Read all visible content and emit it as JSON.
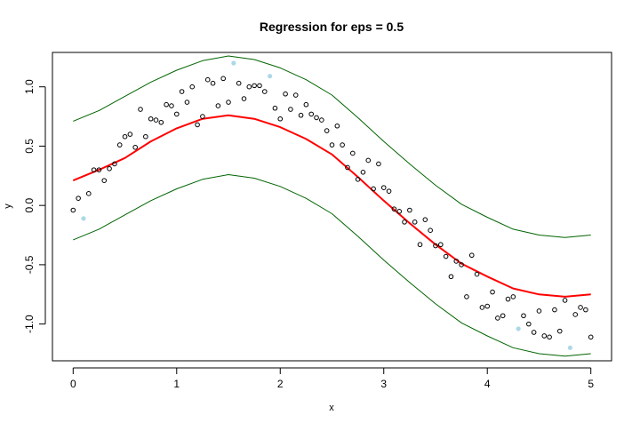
{
  "chart_data": {
    "type": "scatter",
    "title": "Regression for eps = 0.5",
    "xlabel": "x",
    "ylabel": "y",
    "xlim": [
      -0.2,
      5.2
    ],
    "ylim": [
      -1.31,
      1.29
    ],
    "xticks": [
      "0",
      "1",
      "2",
      "3",
      "4",
      "5"
    ],
    "yticks": [
      "-1.0",
      "-0.5",
      "0.0",
      "0.5",
      "1.0"
    ],
    "grid": false,
    "series": [
      {
        "type": "scatter",
        "color": "#000000",
        "marker": "open-circle",
        "x": [
          0.0,
          0.05,
          0.15,
          0.2,
          0.25,
          0.3,
          0.35,
          0.4,
          0.45,
          0.5,
          0.55,
          0.6,
          0.65,
          0.7,
          0.75,
          0.8,
          0.85,
          0.9,
          0.95,
          1.0,
          1.05,
          1.1,
          1.15,
          1.2,
          1.25,
          1.3,
          1.35,
          1.4,
          1.45,
          1.5,
          1.6,
          1.65,
          1.7,
          1.75,
          1.8,
          1.85,
          1.95,
          2.0,
          2.05,
          2.1,
          2.15,
          2.2,
          2.25,
          2.3,
          2.35,
          2.4,
          2.45,
          2.5,
          2.55,
          2.6,
          2.65,
          2.7,
          2.75,
          2.8,
          2.85,
          2.9,
          2.95,
          3.0,
          3.05,
          3.1,
          3.15,
          3.2,
          3.25,
          3.3,
          3.35,
          3.4,
          3.45,
          3.5,
          3.55,
          3.6,
          3.65,
          3.7,
          3.75,
          3.8,
          3.85,
          3.9,
          3.95,
          4.0,
          4.05,
          4.1,
          4.15,
          4.2,
          4.25,
          4.35,
          4.4,
          4.45,
          4.5,
          4.55,
          4.6,
          4.65,
          4.7,
          4.75,
          4.85,
          4.9,
          4.95,
          5.0
        ],
        "y": [
          -0.04,
          0.06,
          0.1,
          0.3,
          0.3,
          0.21,
          0.31,
          0.35,
          0.51,
          0.58,
          0.6,
          0.49,
          0.81,
          0.58,
          0.73,
          0.72,
          0.7,
          0.85,
          0.84,
          0.77,
          0.96,
          0.87,
          1.0,
          0.68,
          0.75,
          1.06,
          1.03,
          0.84,
          1.07,
          0.87,
          1.03,
          0.9,
          1.0,
          1.01,
          1.01,
          0.96,
          0.82,
          0.73,
          0.94,
          0.81,
          0.93,
          0.76,
          0.85,
          0.77,
          0.74,
          0.72,
          0.63,
          0.51,
          0.67,
          0.51,
          0.32,
          0.44,
          0.22,
          0.28,
          0.38,
          0.14,
          0.35,
          0.15,
          0.12,
          -0.03,
          -0.05,
          -0.14,
          -0.04,
          -0.14,
          -0.33,
          -0.12,
          -0.21,
          -0.34,
          -0.33,
          -0.43,
          -0.6,
          -0.47,
          -0.5,
          -0.77,
          -0.42,
          -0.58,
          -0.86,
          -0.85,
          -0.73,
          -0.95,
          -0.93,
          -0.79,
          -0.77,
          -0.93,
          -1.0,
          -1.07,
          -0.89,
          -1.1,
          -1.11,
          -0.88,
          -1.06,
          -0.8,
          -0.92,
          -0.86,
          -0.88,
          -1.11
        ]
      },
      {
        "type": "scatter",
        "color": "#add8e6",
        "marker": "filled-circle",
        "x": [
          0.1,
          1.55,
          1.9,
          4.3,
          4.8
        ],
        "y": [
          -0.11,
          1.2,
          1.09,
          -1.04,
          -1.2
        ]
      },
      {
        "type": "line",
        "color": "#ff0000",
        "stroke": 2,
        "x": [
          0.0,
          0.25,
          0.5,
          0.75,
          1.0,
          1.25,
          1.5,
          1.75,
          2.0,
          2.25,
          2.5,
          2.75,
          3.0,
          3.25,
          3.5,
          3.75,
          4.0,
          4.25,
          4.5,
          4.75,
          5.0
        ],
        "y": [
          0.21,
          0.3,
          0.4,
          0.54,
          0.65,
          0.73,
          0.76,
          0.73,
          0.66,
          0.56,
          0.43,
          0.24,
          0.04,
          -0.15,
          -0.33,
          -0.49,
          -0.6,
          -0.7,
          -0.75,
          -0.77,
          -0.75
        ]
      },
      {
        "type": "line",
        "color": "#006400",
        "stroke": 1,
        "x": [
          0.0,
          0.25,
          0.5,
          0.75,
          1.0,
          1.25,
          1.5,
          1.75,
          2.0,
          2.25,
          2.5,
          2.75,
          3.0,
          3.25,
          3.5,
          3.75,
          4.0,
          4.25,
          4.5,
          4.75,
          5.0
        ],
        "y": [
          0.71,
          0.8,
          0.92,
          1.04,
          1.14,
          1.22,
          1.26,
          1.23,
          1.16,
          1.06,
          0.93,
          0.74,
          0.54,
          0.35,
          0.17,
          0.01,
          -0.1,
          -0.2,
          -0.25,
          -0.27,
          -0.25
        ]
      },
      {
        "type": "line",
        "color": "#006400",
        "stroke": 1,
        "x": [
          0.0,
          0.25,
          0.5,
          0.75,
          1.0,
          1.25,
          1.5,
          1.75,
          2.0,
          2.25,
          2.5,
          2.75,
          3.0,
          3.25,
          3.5,
          3.75,
          4.0,
          4.25,
          4.5,
          4.75,
          5.0
        ],
        "y": [
          -0.29,
          -0.2,
          -0.08,
          0.04,
          0.14,
          0.22,
          0.26,
          0.23,
          0.16,
          0.06,
          -0.07,
          -0.26,
          -0.46,
          -0.65,
          -0.83,
          -0.99,
          -1.1,
          -1.2,
          -1.25,
          -1.27,
          -1.25
        ]
      }
    ]
  }
}
